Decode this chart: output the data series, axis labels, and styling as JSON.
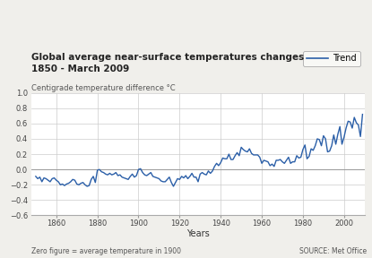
{
  "title_line1": "Global average near-surface temperatures changes",
  "title_line2": "1850 - March 2009",
  "ylabel": "Centigrade temperature difference °C",
  "xlabel": "Years",
  "footer_left": "Zero figure = average temperature in 1900",
  "footer_right": "SOURCE: Met Office",
  "legend_label": "Trend",
  "line_color": "#2b5fa8",
  "background_color": "#f0efeb",
  "plot_bg_color": "#ffffff",
  "grid_color": "#cccccc",
  "ylim": [
    -0.6,
    1.0
  ],
  "xlim": [
    1848,
    2010
  ],
  "yticks": [
    -0.6,
    -0.4,
    -0.2,
    0.0,
    0.2,
    0.4,
    0.6,
    0.8,
    1.0
  ],
  "xticks": [
    1860,
    1880,
    1900,
    1920,
    1940,
    1960,
    1980,
    2000
  ],
  "years": [
    1850,
    1851,
    1852,
    1853,
    1854,
    1855,
    1856,
    1857,
    1858,
    1859,
    1860,
    1861,
    1862,
    1863,
    1864,
    1865,
    1866,
    1867,
    1868,
    1869,
    1870,
    1871,
    1872,
    1873,
    1874,
    1875,
    1876,
    1877,
    1878,
    1879,
    1880,
    1881,
    1882,
    1883,
    1884,
    1885,
    1886,
    1887,
    1888,
    1889,
    1890,
    1891,
    1892,
    1893,
    1894,
    1895,
    1896,
    1897,
    1898,
    1899,
    1900,
    1901,
    1902,
    1903,
    1904,
    1905,
    1906,
    1907,
    1908,
    1909,
    1910,
    1911,
    1912,
    1913,
    1914,
    1915,
    1916,
    1917,
    1918,
    1919,
    1920,
    1921,
    1922,
    1923,
    1924,
    1925,
    1926,
    1927,
    1928,
    1929,
    1930,
    1931,
    1932,
    1933,
    1934,
    1935,
    1936,
    1937,
    1938,
    1939,
    1940,
    1941,
    1942,
    1943,
    1944,
    1945,
    1946,
    1947,
    1948,
    1949,
    1950,
    1951,
    1952,
    1953,
    1954,
    1955,
    1956,
    1957,
    1958,
    1959,
    1960,
    1961,
    1962,
    1963,
    1964,
    1965,
    1966,
    1967,
    1968,
    1969,
    1970,
    1971,
    1972,
    1973,
    1974,
    1975,
    1976,
    1977,
    1978,
    1979,
    1980,
    1981,
    1982,
    1983,
    1984,
    1985,
    1986,
    1987,
    1988,
    1989,
    1990,
    1991,
    1992,
    1993,
    1994,
    1995,
    1996,
    1997,
    1998,
    1999,
    2000,
    2001,
    2002,
    2003,
    2004,
    2005,
    2006,
    2007,
    2008,
    2009
  ],
  "temps": [
    -0.09,
    -0.12,
    -0.1,
    -0.16,
    -0.11,
    -0.12,
    -0.14,
    -0.16,
    -0.12,
    -0.11,
    -0.14,
    -0.16,
    -0.2,
    -0.19,
    -0.21,
    -0.19,
    -0.18,
    -0.16,
    -0.13,
    -0.14,
    -0.19,
    -0.2,
    -0.18,
    -0.17,
    -0.2,
    -0.22,
    -0.21,
    -0.13,
    -0.09,
    -0.17,
    -0.01,
    0.0,
    -0.03,
    -0.04,
    -0.06,
    -0.07,
    -0.05,
    -0.07,
    -0.06,
    -0.04,
    -0.08,
    -0.07,
    -0.1,
    -0.11,
    -0.12,
    -0.13,
    -0.09,
    -0.06,
    -0.1,
    -0.08,
    0.0,
    0.01,
    -0.04,
    -0.07,
    -0.08,
    -0.06,
    -0.04,
    -0.09,
    -0.1,
    -0.11,
    -0.12,
    -0.15,
    -0.16,
    -0.16,
    -0.13,
    -0.1,
    -0.17,
    -0.22,
    -0.17,
    -0.12,
    -0.13,
    -0.09,
    -0.11,
    -0.08,
    -0.12,
    -0.09,
    -0.05,
    -0.1,
    -0.1,
    -0.16,
    -0.06,
    -0.04,
    -0.06,
    -0.07,
    -0.02,
    -0.05,
    -0.02,
    0.04,
    0.08,
    0.05,
    0.09,
    0.15,
    0.14,
    0.14,
    0.2,
    0.13,
    0.13,
    0.18,
    0.22,
    0.18,
    0.29,
    0.26,
    0.24,
    0.23,
    0.27,
    0.21,
    0.19,
    0.19,
    0.19,
    0.16,
    0.08,
    0.12,
    0.11,
    0.1,
    0.05,
    0.07,
    0.04,
    0.12,
    0.12,
    0.13,
    0.1,
    0.08,
    0.12,
    0.16,
    0.08,
    0.1,
    0.1,
    0.18,
    0.15,
    0.16,
    0.26,
    0.32,
    0.14,
    0.17,
    0.27,
    0.25,
    0.31,
    0.4,
    0.39,
    0.31,
    0.44,
    0.4,
    0.23,
    0.24,
    0.31,
    0.45,
    0.33,
    0.46,
    0.56,
    0.33,
    0.42,
    0.54,
    0.63,
    0.62,
    0.54,
    0.68,
    0.61,
    0.58,
    0.43,
    0.72
  ]
}
